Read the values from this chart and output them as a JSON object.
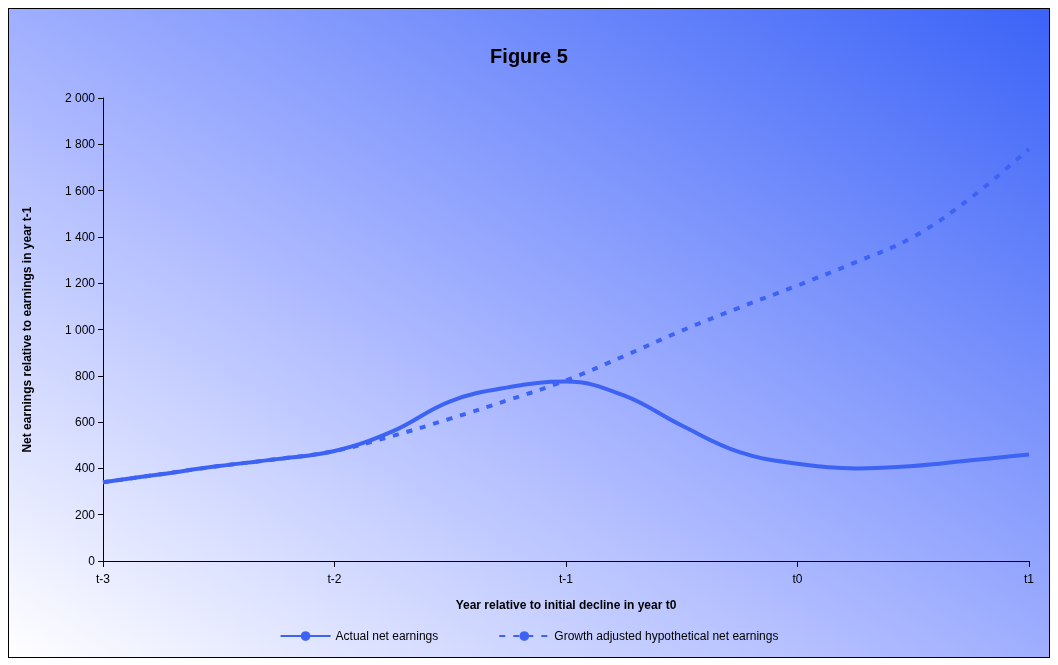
{
  "chart_data": {
    "type": "line",
    "title": "Figure 5",
    "xlabel": "Year relative to initial decline in year t0",
    "ylabel": "Net earnings relative to earnings in year t-1",
    "categories": [
      "t-3",
      null,
      null,
      null,
      "t-2",
      null,
      null,
      null,
      "t-1",
      null,
      null,
      null,
      "t0",
      null,
      null,
      null,
      "t1"
    ],
    "ylim": [
      0,
      2000
    ],
    "yticks": [
      0,
      200,
      400,
      600,
      800,
      {
        "value": 1000,
        "label": "1 000"
      },
      {
        "value": 1200,
        "label": "1 200"
      },
      {
        "value": 1400,
        "label": "1 400"
      },
      {
        "value": 1600,
        "label": "1 600"
      },
      {
        "value": 1800,
        "label": "1 800"
      },
      {
        "value": 2000,
        "label": "2 000"
      }
    ],
    "grid": false,
    "legend": "bottom",
    "marker": "none",
    "series": [
      {
        "name": "Actual net earnings",
        "color": "#3d63f5",
        "line_style": "solid",
        "values": [
          340,
          375,
          410,
          440,
          475,
          560,
          690,
          750,
          775,
          715,
          585,
          470,
          420,
          400,
          410,
          435,
          460
        ]
      },
      {
        "name": "Growth adjusted hypothetical net earnings",
        "color": "#3d63f5",
        "line_style": "dashed",
        "values": [
          340,
          375,
          410,
          440,
          475,
          540,
          615,
          695,
          780,
          885,
          995,
          1095,
          1190,
          1290,
          1400,
          1570,
          1780
        ]
      }
    ]
  }
}
